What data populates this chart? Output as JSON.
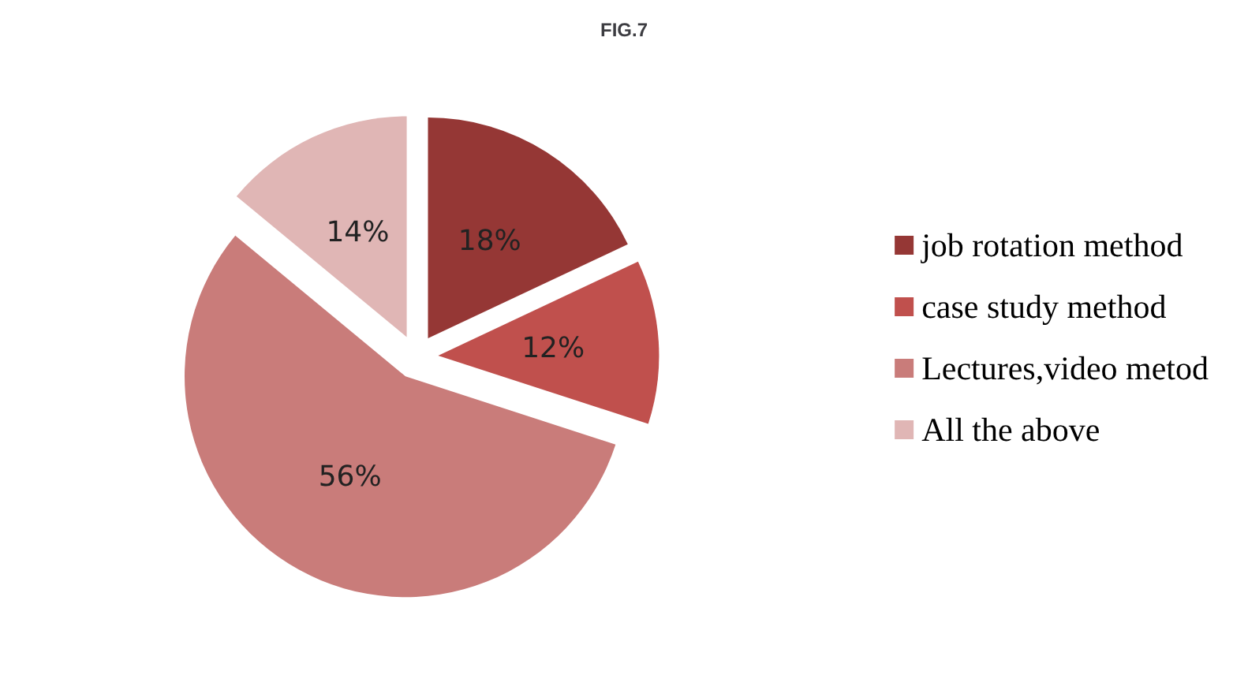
{
  "chart_data": {
    "type": "pie",
    "title": "FIG.7",
    "categories": [
      "job rotation method",
      "case study method",
      "Lectures,video metod",
      "All the above"
    ],
    "values": [
      18,
      12,
      56,
      14
    ],
    "colors": [
      "#953735",
      "#c0504d",
      "#c97c7a",
      "#e0b6b5"
    ],
    "value_labels": [
      "18%",
      "12%",
      "56%",
      "14%"
    ],
    "legend": "right"
  }
}
